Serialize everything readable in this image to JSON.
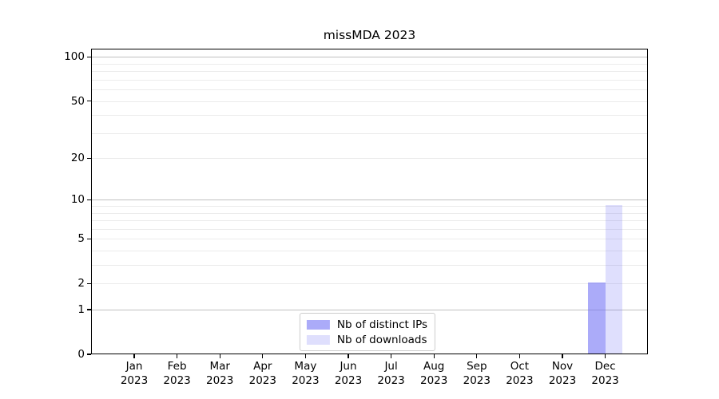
{
  "chart_data": {
    "type": "bar",
    "title": "missMDA 2023",
    "months": [
      "Jan",
      "Feb",
      "Mar",
      "Apr",
      "May",
      "Jun",
      "Jul",
      "Aug",
      "Sep",
      "Oct",
      "Nov",
      "Dec"
    ],
    "year": "2023",
    "categories": [
      "Jan 2023",
      "Feb 2023",
      "Mar 2023",
      "Apr 2023",
      "May 2023",
      "Jun 2023",
      "Jul 2023",
      "Aug 2023",
      "Sep 2023",
      "Oct 2023",
      "Nov 2023",
      "Dec 2023"
    ],
    "series": [
      {
        "name": "Nb of distinct IPs",
        "color": "rgba(110,110,245,0.58)",
        "values": [
          0,
          0,
          0,
          0,
          0,
          0,
          0,
          0,
          0,
          0,
          0,
          2
        ]
      },
      {
        "name": "Nb of downloads",
        "color": "rgba(110,110,245,0.22)",
        "values": [
          0,
          0,
          0,
          0,
          0,
          0,
          0,
          0,
          0,
          0,
          0,
          9
        ]
      }
    ],
    "y_axis": {
      "scale": "log1p",
      "ticks": [
        100,
        50,
        20,
        10,
        5,
        2,
        1,
        0
      ],
      "major_gridlines": [
        1,
        10,
        100
      ],
      "minor_gridlines": [
        2,
        3,
        4,
        5,
        6,
        7,
        8,
        9,
        20,
        30,
        40,
        50,
        60,
        70,
        80,
        90
      ],
      "ylim": [
        0,
        114
      ]
    },
    "legend": {
      "position": "lower center"
    },
    "grid": "horizontal",
    "colors": {
      "axis": "#000000",
      "major_grid": "#c0c0c0",
      "minor_grid": "#ebebeb",
      "background": "#ffffff",
      "legend_border": "#cccccc"
    }
  }
}
